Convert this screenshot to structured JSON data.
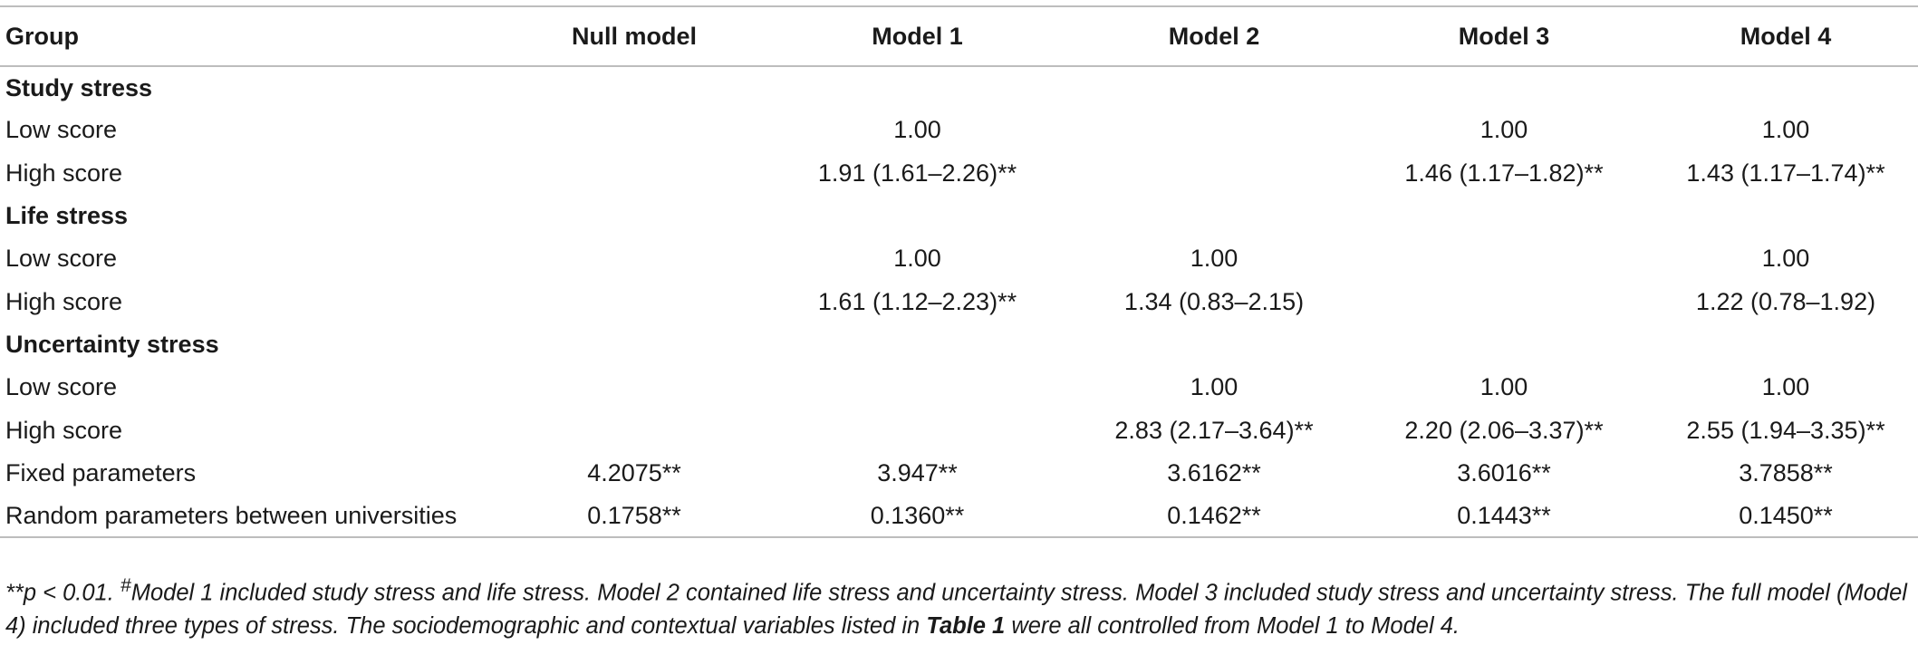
{
  "table": {
    "columns": [
      "Group",
      "Null model",
      "Model 1",
      "Model 2",
      "Model 3",
      "Model 4"
    ],
    "rows": [
      {
        "type": "section",
        "label": "Study stress",
        "cells": [
          "",
          "",
          "",
          "",
          ""
        ]
      },
      {
        "type": "row",
        "label": "Low score",
        "cells": [
          "",
          "1.00",
          "",
          "1.00",
          "1.00"
        ]
      },
      {
        "type": "row",
        "label": "High score",
        "cells": [
          "",
          "1.91 (1.61–2.26)**",
          "",
          "1.46 (1.17–1.82)**",
          "1.43 (1.17–1.74)**"
        ]
      },
      {
        "type": "section",
        "label": "Life stress",
        "cells": [
          "",
          "",
          "",
          "",
          ""
        ]
      },
      {
        "type": "row",
        "label": "Low score",
        "cells": [
          "",
          "1.00",
          "1.00",
          "",
          "1.00"
        ]
      },
      {
        "type": "row",
        "label": "High score",
        "cells": [
          "",
          "1.61 (1.12–2.23)**",
          "1.34 (0.83–2.15)",
          "",
          "1.22 (0.78–1.92)"
        ]
      },
      {
        "type": "section",
        "label": "Uncertainty stress",
        "cells": [
          "",
          "",
          "",
          "",
          ""
        ]
      },
      {
        "type": "row",
        "label": "Low score",
        "cells": [
          "",
          "",
          "1.00",
          "1.00",
          "1.00"
        ]
      },
      {
        "type": "row",
        "label": "High score",
        "cells": [
          "",
          "",
          "2.83 (2.17–3.64)**",
          "2.20 (2.06–3.37)**",
          "2.55 (1.94–3.35)**"
        ]
      },
      {
        "type": "row",
        "label": "Fixed parameters",
        "cells": [
          "4.2075**",
          "3.947**",
          "3.6162**",
          "3.6016**",
          "3.7858**"
        ]
      },
      {
        "type": "row",
        "label": "Random parameters between universities",
        "cells": [
          "0.1758**",
          "0.1360**",
          "0.1462**",
          "0.1443**",
          "0.1450**"
        ]
      }
    ]
  },
  "footnote": {
    "pval": "**p < 0.01. ",
    "marker": "#",
    "text1": "Model 1 included study stress and life stress. Model 2 contained life stress and uncertainty stress. Model 3 included study stress and uncertainty stress. The full model (Model 4) included three types of stress. The sociodemographic and contextual variables listed in ",
    "ref": "Table 1",
    "text2": " were all controlled from Model 1 to Model 4."
  }
}
